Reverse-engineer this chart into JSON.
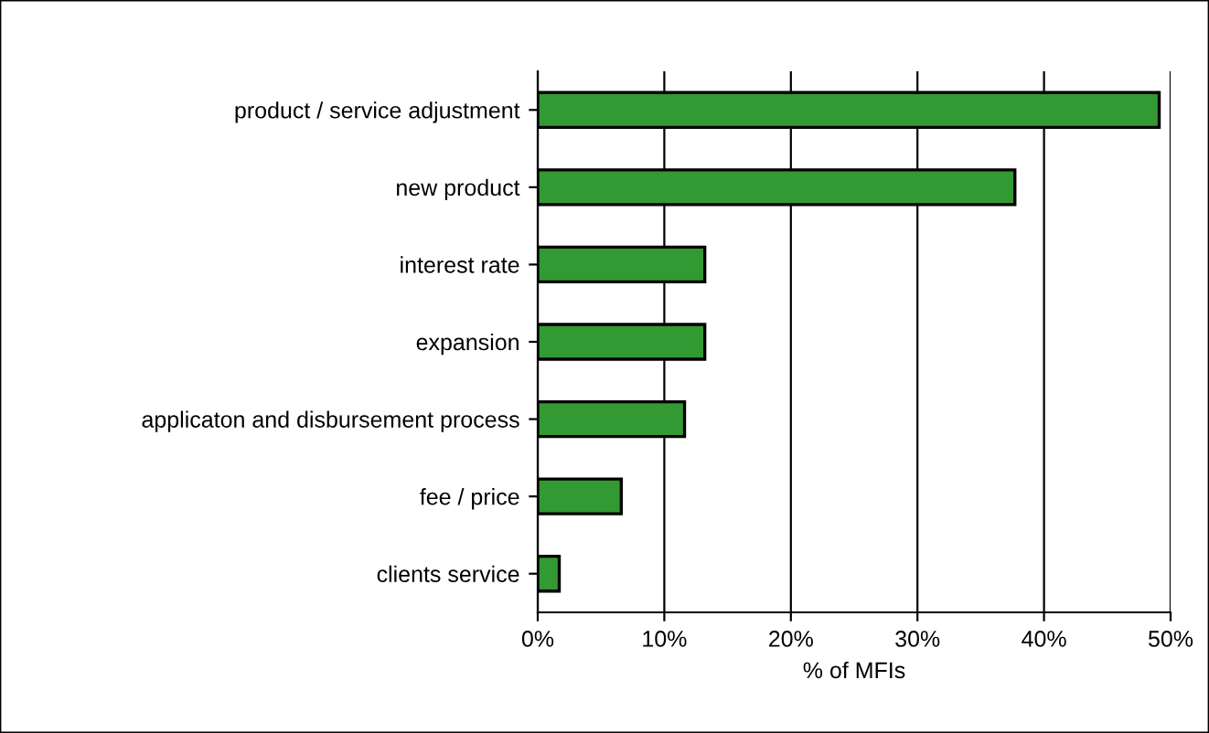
{
  "chart_data": {
    "type": "bar",
    "orientation": "horizontal",
    "xlabel": "% of MFIs",
    "categories": [
      "product / service adjustment",
      "new product",
      "interest rate",
      "expansion",
      "applicaton and disbursement process",
      "fee / price",
      "clients service"
    ],
    "values": [
      49.1,
      37.7,
      13.2,
      13.2,
      11.6,
      6.6,
      1.7
    ],
    "color": "#339933",
    "xlim": [
      0,
      50
    ],
    "xticks": [
      {
        "value": 0,
        "label": "0%"
      },
      {
        "value": 10,
        "label": "10%"
      },
      {
        "value": 20,
        "label": "20%"
      },
      {
        "value": 30,
        "label": "30%"
      },
      {
        "value": 40,
        "label": "40%"
      },
      {
        "value": 50,
        "label": "50%"
      }
    ],
    "grid": "x"
  }
}
